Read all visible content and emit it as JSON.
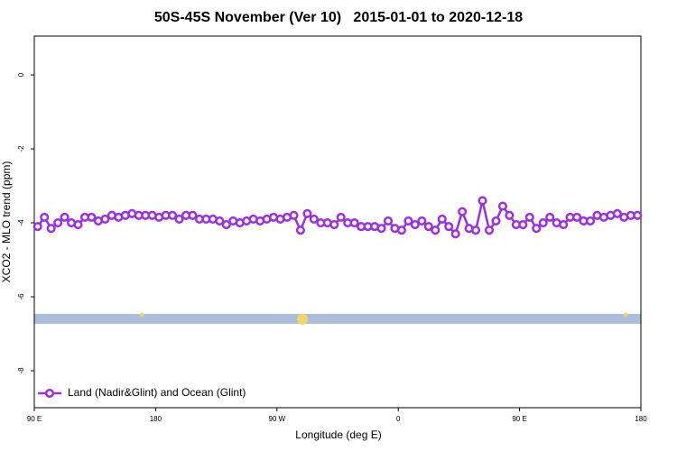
{
  "chart_data": {
    "type": "line",
    "title": "50S-45S November (Ver 10)   2015-01-01 to 2020-12-18",
    "x_label": "Longitude (deg E)",
    "y_label": "XCO2 - MLO trend (ppm)",
    "x": [
      92.5,
      97.5,
      102.5,
      107.5,
      112.5,
      117.5,
      122.5,
      127.5,
      132.5,
      137.5,
      142.5,
      147.5,
      152.5,
      157.5,
      162.5,
      167.5,
      172.5,
      177.5,
      182.5,
      187.5,
      192.5,
      197.5,
      202.5,
      207.5,
      212.5,
      217.5,
      222.5,
      227.5,
      232.5,
      237.5,
      242.5,
      247.5,
      252.5,
      257.5,
      262.5,
      267.5,
      272.5,
      277.5,
      282.5,
      287.5,
      292.5,
      297.5,
      302.5,
      307.5,
      312.5,
      317.5,
      322.5,
      327.5,
      332.5,
      337.5,
      342.5,
      347.5,
      352.5,
      357.5,
      362.5,
      367.5,
      372.5,
      377.5,
      382.5,
      387.5,
      392.5,
      397.5,
      402.5,
      407.5,
      412.5,
      417.5,
      422.5,
      427.5,
      432.5,
      437.5,
      442.5,
      447.5,
      452.5,
      457.5,
      462.5,
      467.5,
      472.5,
      477.5,
      482.5,
      487.5,
      492.5,
      497.5,
      502.5,
      507.5,
      512.5,
      517.5,
      522.5,
      527.5,
      532.5,
      537.5
    ],
    "series": [
      {
        "name": "Land (Nadir&Glint) and Ocean (Glint)",
        "color": "#9b30e0",
        "values": [
          -4.1,
          -3.85,
          -4.15,
          -4.0,
          -3.85,
          -4.0,
          -4.05,
          -3.85,
          -3.85,
          -3.95,
          -3.9,
          -3.8,
          -3.85,
          -3.8,
          -3.75,
          -3.8,
          -3.8,
          -3.8,
          -3.85,
          -3.8,
          -3.8,
          -3.9,
          -3.8,
          -3.8,
          -3.9,
          -3.9,
          -3.9,
          -3.95,
          -4.05,
          -3.95,
          -4.0,
          -3.95,
          -3.9,
          -3.95,
          -3.9,
          -3.85,
          -3.9,
          -3.85,
          -3.8,
          -4.2,
          -3.75,
          -3.9,
          -4.0,
          -4.0,
          -4.05,
          -3.85,
          -4.0,
          -4.0,
          -4.1,
          -4.1,
          -4.1,
          -4.15,
          -3.95,
          -4.15,
          -4.2,
          -3.95,
          -4.05,
          -3.95,
          -4.1,
          -4.2,
          -3.9,
          -4.1,
          -4.3,
          -3.7,
          -4.15,
          -4.2,
          -3.4,
          -4.2,
          -3.95,
          -3.55,
          -3.8,
          -4.05,
          -4.05,
          -3.85,
          -4.15,
          -4.0,
          -3.85,
          -4.0,
          -4.05,
          -3.85,
          -3.85,
          -3.95,
          -3.95,
          -3.8,
          -3.85,
          -3.8,
          -3.75,
          -3.85,
          -3.8,
          -3.8
        ]
      }
    ],
    "xlim": [
      90,
      540
    ],
    "xticks": [
      {
        "value": 90,
        "label": "90 E"
      },
      {
        "value": 180,
        "label": "180"
      },
      {
        "value": 270,
        "label": "90 W"
      },
      {
        "value": 360,
        "label": "0"
      },
      {
        "value": 450,
        "label": "90 E"
      },
      {
        "value": 540,
        "label": "180"
      }
    ],
    "ylim": [
      -9,
      1.05
    ],
    "yticks": [
      -8,
      -6,
      -4,
      -2,
      0
    ],
    "legend": "bottom-left"
  }
}
